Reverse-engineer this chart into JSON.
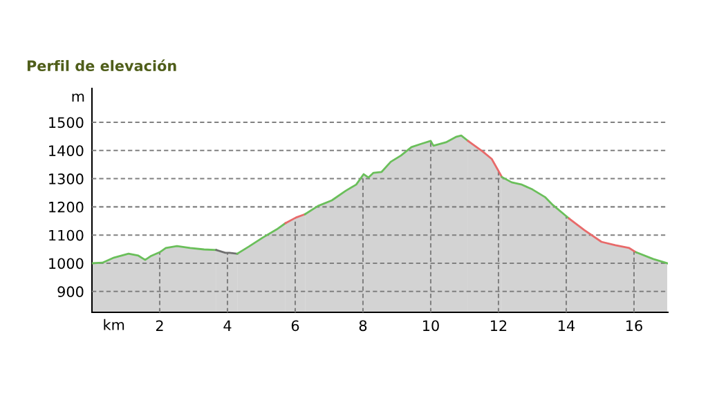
{
  "chart_data": {
    "type": "area",
    "title": "Perfil de elevación",
    "xlabel": "km",
    "ylabel": "m",
    "xlim": [
      0,
      17
    ],
    "xticks": [
      2,
      4,
      6,
      8,
      10,
      12,
      14,
      16
    ],
    "ylim": [
      826,
      1620
    ],
    "yticks": [
      900,
      1000,
      1100,
      1200,
      1300,
      1400,
      1500
    ],
    "grid": true,
    "legend": false,
    "series": [
      {
        "color": "#6abf5a",
        "x": [
          0,
          0.31,
          0.65,
          1.08,
          1.37,
          1.57,
          1.73,
          2.0,
          2.18,
          2.51,
          2.9,
          3.31,
          3.67
        ],
        "values": [
          1000,
          1002,
          1020,
          1034,
          1027,
          1012,
          1025,
          1039,
          1054,
          1061,
          1054,
          1049,
          1047
        ]
      },
      {
        "color": "#707070",
        "x": [
          3.67,
          3.94,
          4.06,
          4.29
        ],
        "values": [
          1047,
          1037,
          1037,
          1034
        ]
      },
      {
        "color": "#6abf5a",
        "x": [
          4.29,
          4.63,
          5.04,
          5.45,
          5.71
        ],
        "values": [
          1034,
          1059,
          1091,
          1120,
          1142
        ]
      },
      {
        "color": "#e86a6a",
        "x": [
          5.71,
          6.02,
          6.29
        ],
        "values": [
          1142,
          1162,
          1174
        ]
      },
      {
        "color": "#6abf5a",
        "x": [
          6.29,
          6.67,
          7.08,
          7.49,
          7.8,
          8.02,
          8.16,
          8.31,
          8.55,
          8.82,
          9.12,
          9.43,
          9.73,
          10.0,
          10.08,
          10.45,
          10.76,
          10.9,
          11.1
        ],
        "values": [
          1174,
          1203,
          1223,
          1257,
          1279,
          1316,
          1304,
          1321,
          1324,
          1360,
          1382,
          1412,
          1424,
          1434,
          1417,
          1429,
          1449,
          1453,
          1434
        ]
      },
      {
        "color": "#e86a6a",
        "x": [
          11.1,
          11.55,
          11.8,
          12.1
        ],
        "values": [
          1434,
          1395,
          1370,
          1306
        ]
      },
      {
        "color": "#6abf5a",
        "x": [
          12.1,
          12.39,
          12.69,
          13.0,
          13.37,
          13.61,
          14.08
        ],
        "values": [
          1306,
          1287,
          1279,
          1262,
          1235,
          1206,
          1159
        ]
      },
      {
        "color": "#e86a6a",
        "x": [
          14.08,
          14.53,
          15.04,
          15.45,
          15.86,
          16.06
        ],
        "values": [
          1159,
          1118,
          1076,
          1064,
          1054,
          1039
        ]
      },
      {
        "color": "#6abf5a",
        "x": [
          16.06,
          16.57,
          16.98
        ],
        "values": [
          1039,
          1015,
          1000
        ]
      }
    ]
  }
}
